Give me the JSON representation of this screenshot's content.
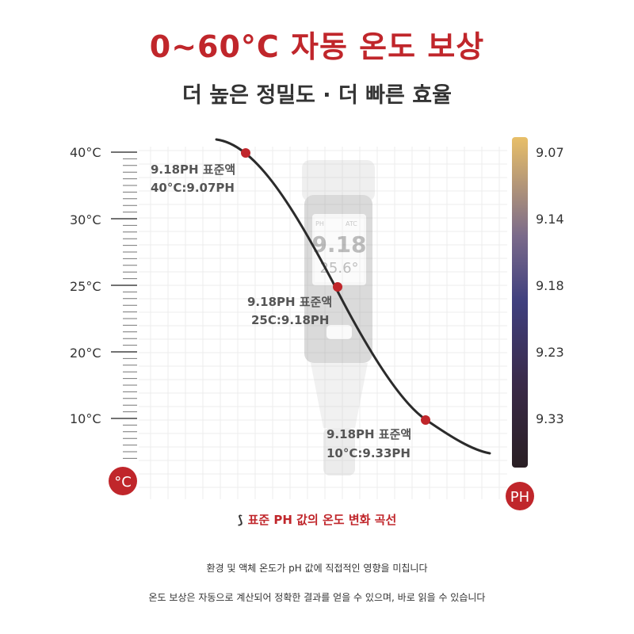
{
  "header": {
    "title": "0~60°C 자동 온도 보상",
    "subtitle": "더 높은 정밀도 · 더 빠른 효율"
  },
  "temperature_axis": {
    "unit_badge": "°C",
    "ticks": [
      "40°C",
      "30°C",
      "25°C",
      "20°C",
      "10°C"
    ]
  },
  "ph_axis": {
    "unit_badge": "PH",
    "ticks": [
      "9.07",
      "9.14",
      "9.18",
      "9.23",
      "9.33"
    ],
    "gradient_colors": [
      "#e8bf68",
      "#7a6a8a",
      "#3f3f7e",
      "#3a2a48",
      "#2a1f24"
    ]
  },
  "device_display": {
    "value": "9.18",
    "temp": "25.6°",
    "label_ph": "PH",
    "label_atc": "ATC"
  },
  "points": [
    {
      "name": "point-40",
      "line1": "9.18PH 표준액",
      "line2": "40°C:9.07PH"
    },
    {
      "name": "point-25",
      "line1": "9.18PH 표준액",
      "line2": "25C:9.18PH"
    },
    {
      "name": "point-10",
      "line1": "9.18PH 표준액",
      "line2": "10°C:9.33PH"
    }
  ],
  "colors": {
    "accent": "#c0262b",
    "curve": "#2b2b2b"
  },
  "caption": "표준 PH 값의 온도 변화 곡선",
  "description": [
    "환경 및 액체 온도가 pH 값에 직접적인 영향을 미칩니다",
    "온도 보상은 자동으로 계산되어 정확한 결과를 얻을 수 있으며, 바로 읽을 수 있습니다"
  ]
}
